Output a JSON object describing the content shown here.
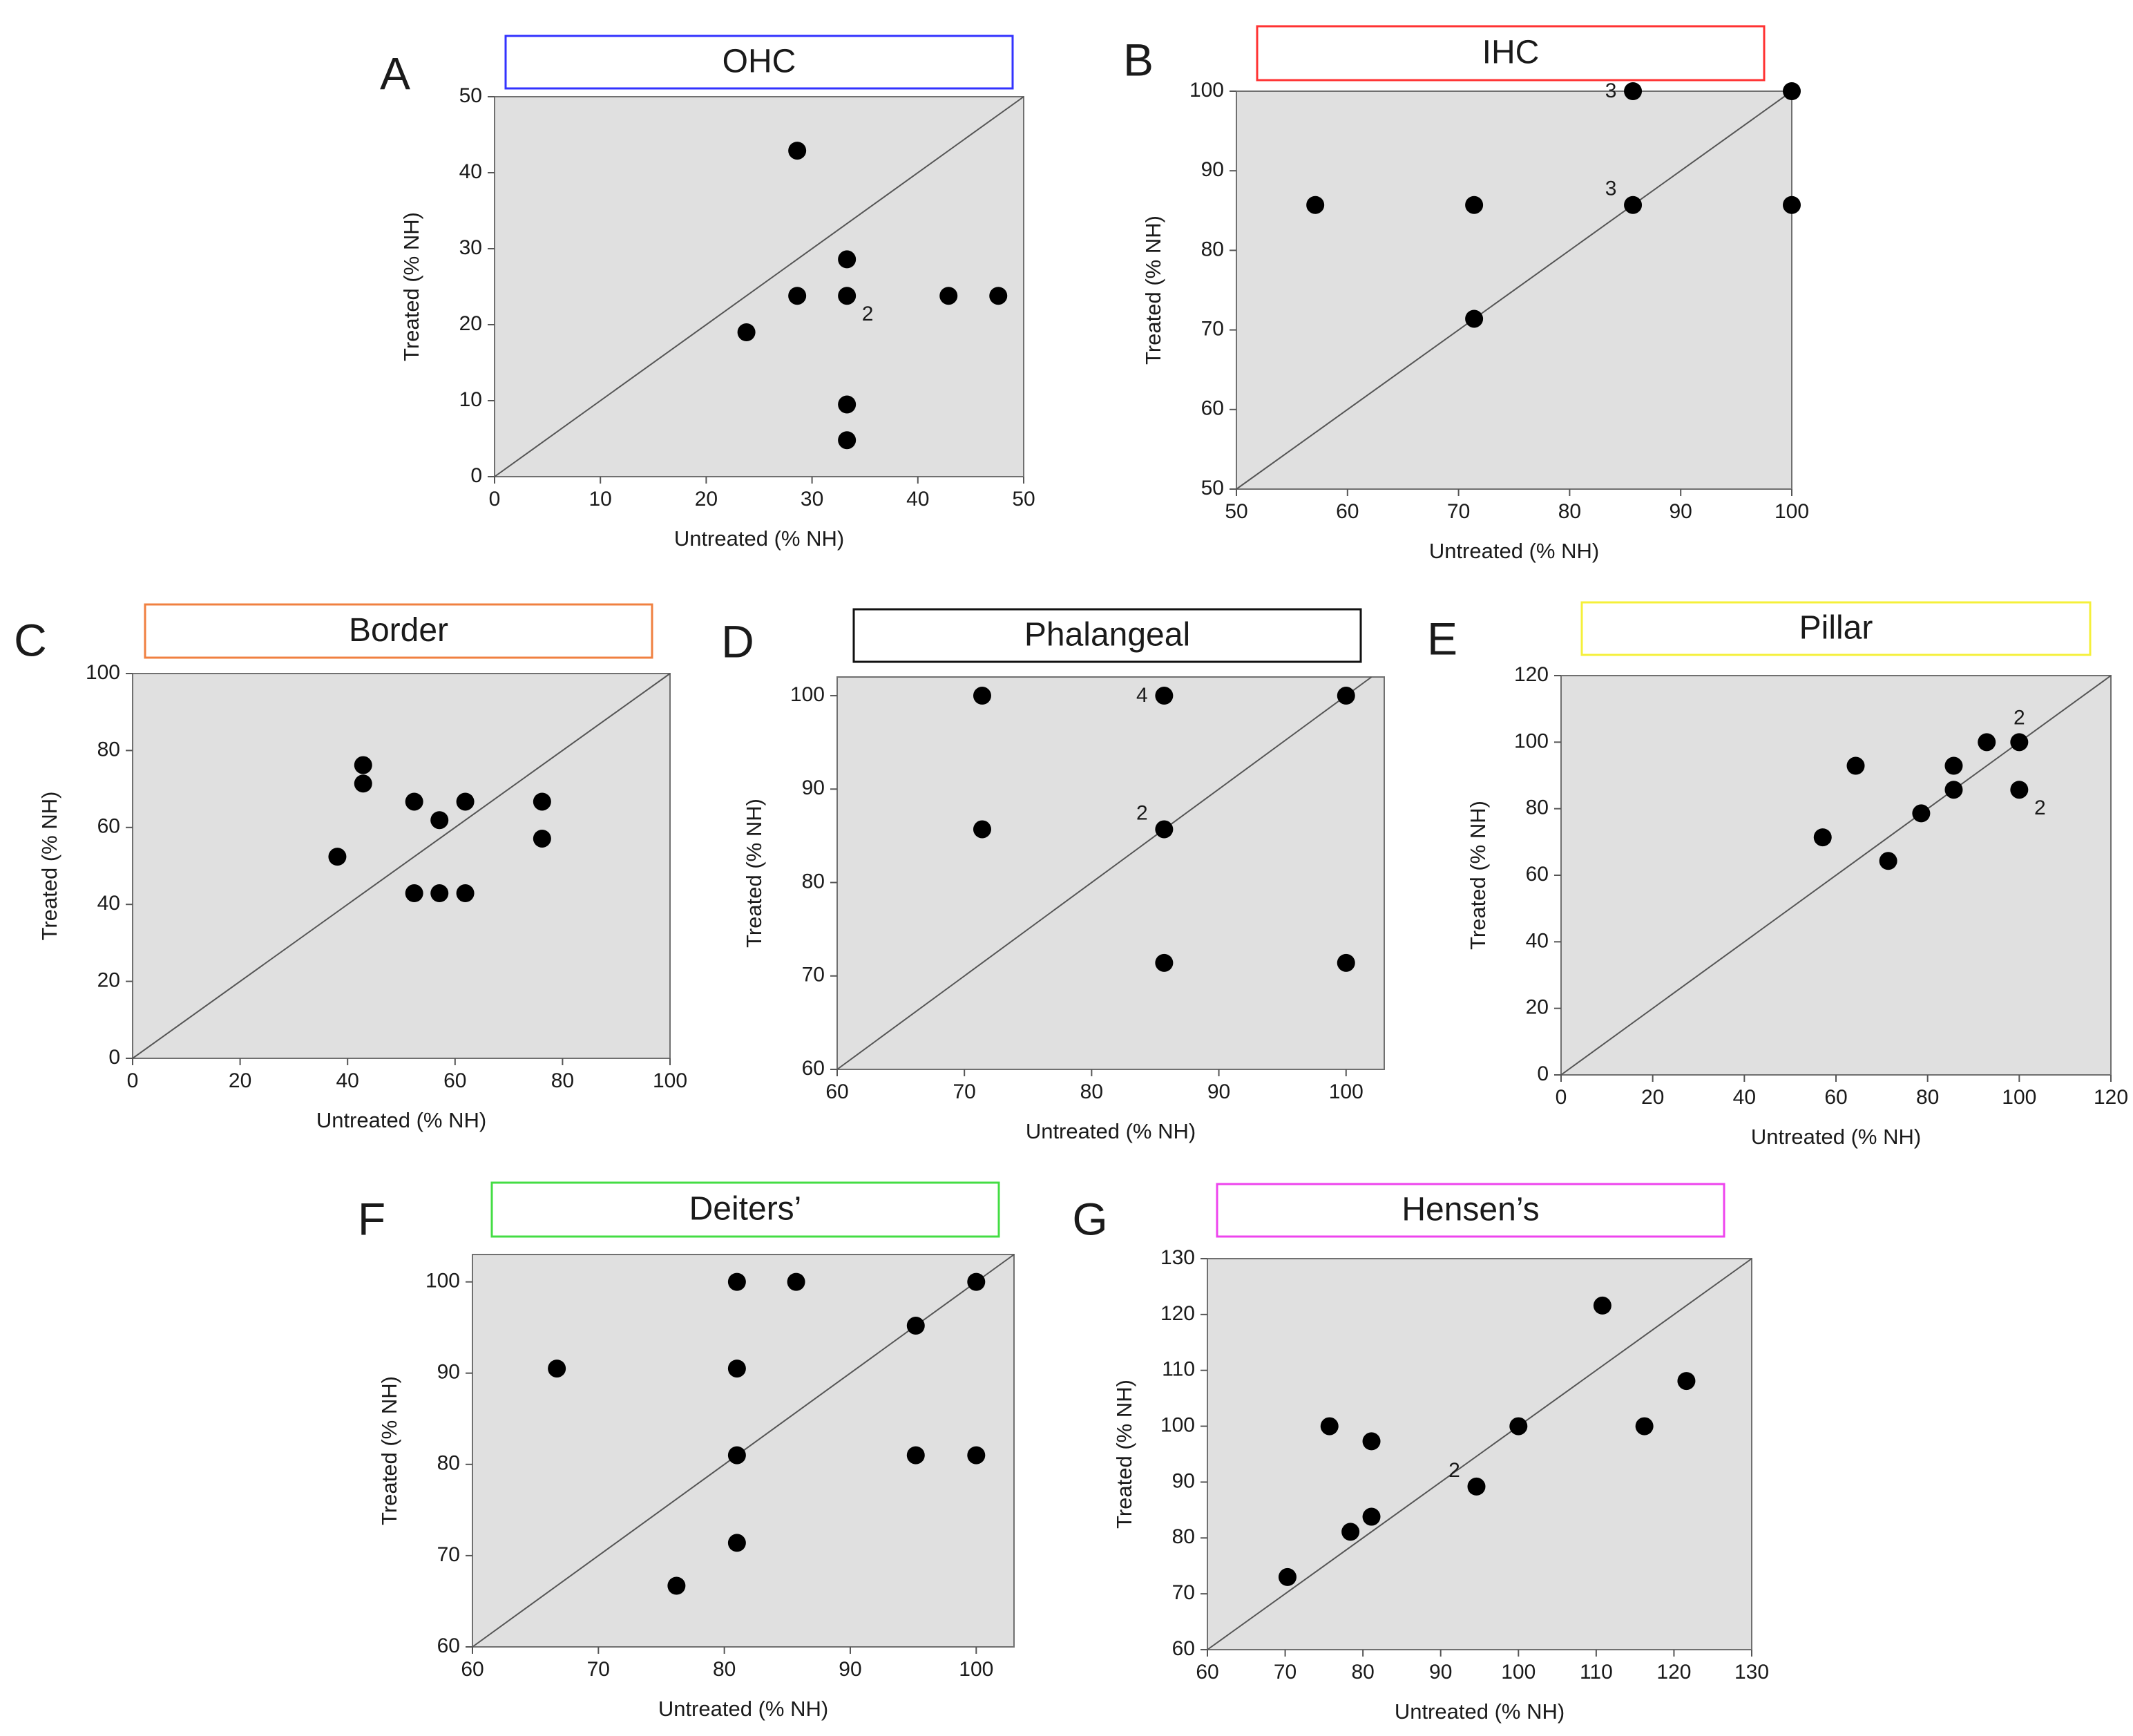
{
  "figure_name": "scatter-panels",
  "chart_data": [
    {
      "type": "scatter",
      "letter": "A",
      "title": "OHC",
      "title_color": "#3333ff",
      "xlabel": "Untreated (% NH)",
      "ylabel": "Treated (% NH)",
      "xlim": [
        0,
        50
      ],
      "ylim": [
        0,
        50
      ],
      "xticks": [
        0,
        10,
        20,
        30,
        40,
        50
      ],
      "yticks": [
        0,
        10,
        20,
        30,
        40,
        50
      ],
      "points": [
        {
          "x": 23.8,
          "y": 19.0
        },
        {
          "x": 28.6,
          "y": 42.9
        },
        {
          "x": 28.6,
          "y": 23.8
        },
        {
          "x": 33.3,
          "y": 28.6
        },
        {
          "x": 33.3,
          "y": 23.8,
          "label": "2",
          "label_pos": "below-right"
        },
        {
          "x": 33.3,
          "y": 9.5
        },
        {
          "x": 33.3,
          "y": 4.8
        },
        {
          "x": 42.9,
          "y": 23.8
        },
        {
          "x": 47.6,
          "y": 23.8
        }
      ]
    },
    {
      "type": "scatter",
      "letter": "B",
      "title": "IHC",
      "title_color": "#ff3333",
      "xlabel": "Untreated (% NH)",
      "ylabel": "Treated (% NH)",
      "xlim": [
        50,
        100
      ],
      "ylim": [
        50,
        100
      ],
      "xticks": [
        50,
        60,
        70,
        80,
        90,
        100
      ],
      "yticks": [
        50,
        60,
        70,
        80,
        90,
        100
      ],
      "points": [
        {
          "x": 57.1,
          "y": 85.7
        },
        {
          "x": 71.4,
          "y": 85.7
        },
        {
          "x": 71.4,
          "y": 71.4
        },
        {
          "x": 85.7,
          "y": 100,
          "label": "3",
          "label_pos": "left"
        },
        {
          "x": 85.7,
          "y": 85.7,
          "label": "3",
          "label_pos": "upper-left"
        },
        {
          "x": 100,
          "y": 100
        },
        {
          "x": 100,
          "y": 85.7
        }
      ]
    },
    {
      "type": "scatter",
      "letter": "C",
      "title": "Border",
      "title_color": "#f08040",
      "xlabel": "Untreated (% NH)",
      "ylabel": "Treated (% NH)",
      "xlim": [
        0,
        100
      ],
      "ylim": [
        0,
        100
      ],
      "xticks": [
        0,
        20,
        40,
        60,
        80,
        100
      ],
      "yticks": [
        0,
        20,
        40,
        60,
        80,
        100
      ],
      "points": [
        {
          "x": 38.1,
          "y": 52.4
        },
        {
          "x": 42.9,
          "y": 76.2
        },
        {
          "x": 42.9,
          "y": 71.4
        },
        {
          "x": 52.4,
          "y": 66.7
        },
        {
          "x": 52.4,
          "y": 42.9
        },
        {
          "x": 57.1,
          "y": 61.9
        },
        {
          "x": 57.1,
          "y": 42.9
        },
        {
          "x": 61.9,
          "y": 66.7
        },
        {
          "x": 61.9,
          "y": 42.9
        },
        {
          "x": 76.2,
          "y": 66.7
        },
        {
          "x": 76.2,
          "y": 57.1
        }
      ]
    },
    {
      "type": "scatter",
      "letter": "D",
      "title": "Phalangeal",
      "title_color": "#111111",
      "xlabel": "Untreated (% NH)",
      "ylabel": "Treated (% NH)",
      "xlim": [
        60,
        103
      ],
      "ylim": [
        60,
        102
      ],
      "xticks": [
        60,
        70,
        80,
        90,
        100
      ],
      "yticks": [
        60,
        70,
        80,
        90,
        100
      ],
      "points": [
        {
          "x": 71.4,
          "y": 100
        },
        {
          "x": 71.4,
          "y": 85.7
        },
        {
          "x": 85.7,
          "y": 100,
          "label": "4",
          "label_pos": "left"
        },
        {
          "x": 85.7,
          "y": 85.7,
          "label": "2",
          "label_pos": "upper-left"
        },
        {
          "x": 85.7,
          "y": 71.4
        },
        {
          "x": 100,
          "y": 100
        },
        {
          "x": 100,
          "y": 71.4
        }
      ]
    },
    {
      "type": "scatter",
      "letter": "E",
      "title": "Pillar",
      "title_color": "#f5f03a",
      "xlabel": "Untreated (% NH)",
      "ylabel": "Treated (% NH)",
      "xlim": [
        0,
        120
      ],
      "ylim": [
        0,
        120
      ],
      "xticks": [
        0,
        20,
        40,
        60,
        80,
        100,
        120
      ],
      "yticks": [
        0,
        20,
        40,
        60,
        80,
        100,
        120
      ],
      "points": [
        {
          "x": 57.1,
          "y": 71.4
        },
        {
          "x": 64.3,
          "y": 92.9
        },
        {
          "x": 71.4,
          "y": 64.3
        },
        {
          "x": 78.6,
          "y": 78.6
        },
        {
          "x": 85.7,
          "y": 92.9
        },
        {
          "x": 85.7,
          "y": 85.7
        },
        {
          "x": 92.9,
          "y": 100
        },
        {
          "x": 100,
          "y": 100,
          "label": "2",
          "label_pos": "above"
        },
        {
          "x": 100,
          "y": 85.7,
          "label": "2",
          "label_pos": "below-right"
        }
      ]
    },
    {
      "type": "scatter",
      "letter": "F",
      "title": "Deiters’",
      "title_color": "#44dd44",
      "xlabel": "Untreated (% NH)",
      "ylabel": "Treated (% NH)",
      "xlim": [
        60,
        103
      ],
      "ylim": [
        60,
        103
      ],
      "xticks": [
        60,
        70,
        80,
        90,
        100
      ],
      "yticks": [
        60,
        70,
        80,
        90,
        100
      ],
      "points": [
        {
          "x": 66.7,
          "y": 90.5
        },
        {
          "x": 76.2,
          "y": 66.7
        },
        {
          "x": 81.0,
          "y": 100
        },
        {
          "x": 81.0,
          "y": 90.5
        },
        {
          "x": 81.0,
          "y": 81.0
        },
        {
          "x": 81.0,
          "y": 71.4
        },
        {
          "x": 85.7,
          "y": 100
        },
        {
          "x": 95.2,
          "y": 95.2
        },
        {
          "x": 95.2,
          "y": 81.0
        },
        {
          "x": 100,
          "y": 100
        },
        {
          "x": 100,
          "y": 81.0
        }
      ]
    },
    {
      "type": "scatter",
      "letter": "G",
      "title": "Hensen’s",
      "title_color": "#ee44ee",
      "xlabel": "Untreated (% NH)",
      "ylabel": "Treated (% NH)",
      "xlim": [
        60,
        130
      ],
      "ylim": [
        60,
        130
      ],
      "xticks": [
        60,
        70,
        80,
        90,
        100,
        110,
        120,
        130
      ],
      "yticks": [
        60,
        70,
        80,
        90,
        100,
        110,
        120,
        130
      ],
      "points": [
        {
          "x": 70.3,
          "y": 73.0
        },
        {
          "x": 75.7,
          "y": 100
        },
        {
          "x": 78.4,
          "y": 81.1
        },
        {
          "x": 81.1,
          "y": 97.3
        },
        {
          "x": 81.1,
          "y": 83.8
        },
        {
          "x": 94.6,
          "y": 89.2,
          "label": "2",
          "label_pos": "upper-left"
        },
        {
          "x": 100,
          "y": 100
        },
        {
          "x": 110.8,
          "y": 121.6
        },
        {
          "x": 116.2,
          "y": 100
        },
        {
          "x": 121.6,
          "y": 108.1
        }
      ]
    }
  ]
}
